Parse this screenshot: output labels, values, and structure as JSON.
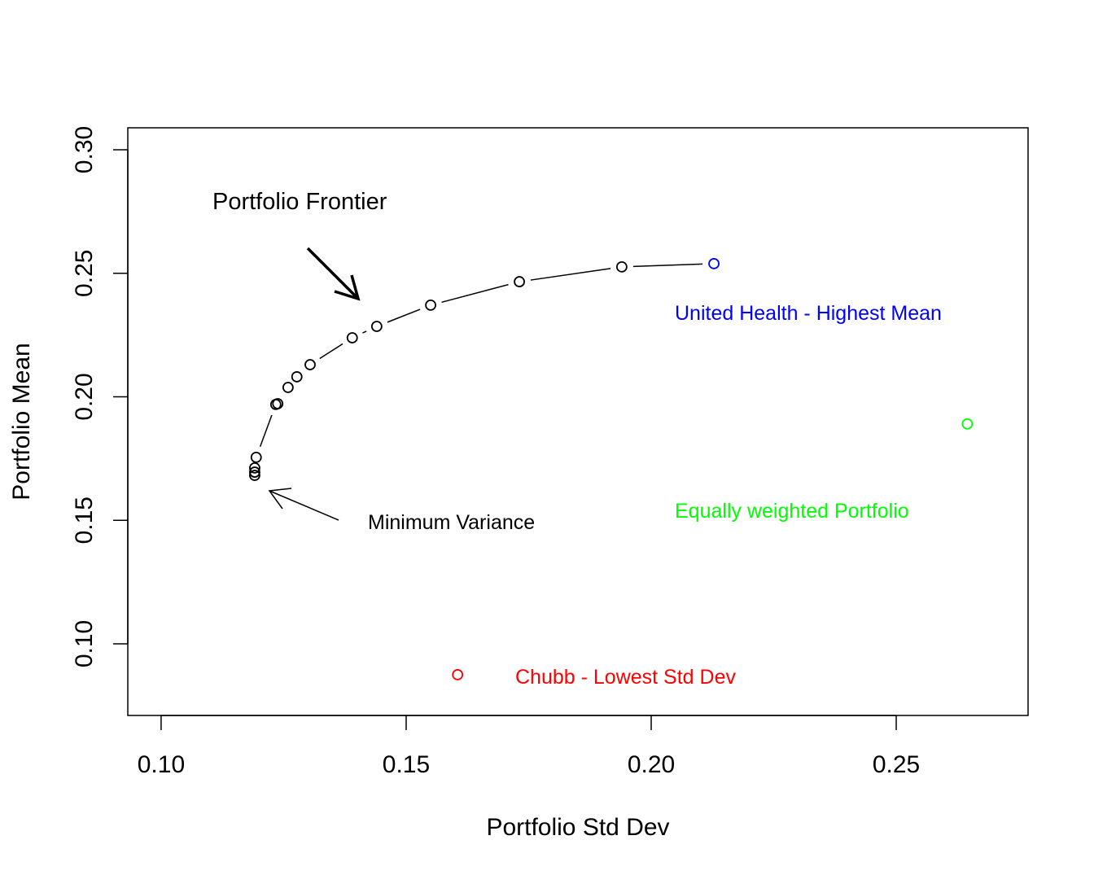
{
  "chart_data": {
    "type": "scatter",
    "title": "",
    "xlabel": "Portfolio Std Dev",
    "ylabel": "Portfolio Mean",
    "xlim": [
      0.0932,
      0.2769
    ],
    "ylim": [
      0.071,
      0.3089
    ],
    "xticks": [
      0.1,
      0.15,
      0.2,
      0.25
    ],
    "xtick_labels": [
      "0.10",
      "0.15",
      "0.20",
      "0.25"
    ],
    "yticks": [
      0.1,
      0.15,
      0.2,
      0.25,
      0.3
    ],
    "ytick_labels": [
      "0.10",
      "0.15",
      "0.20",
      "0.25",
      "0.30"
    ],
    "grid": false,
    "series": [
      {
        "color": "#000000",
        "style": "points-and-lines",
        "x": [
          0.1191,
          0.1191,
          0.1191,
          0.1194,
          0.1234,
          0.1238,
          0.1259,
          0.1277,
          0.1304,
          0.139,
          0.144,
          0.155,
          0.1731,
          0.194
        ],
        "y": [
          0.1682,
          0.1695,
          0.1712,
          0.1755,
          0.1969,
          0.1972,
          0.2038,
          0.2081,
          0.213,
          0.2239,
          0.2285,
          0.2371,
          0.2466,
          0.2526
        ]
      },
      {
        "color": "#0000FF",
        "x": [
          0.2128
        ],
        "y": [
          0.2539
        ]
      },
      {
        "color": "#00FF00",
        "x": [
          0.2645
        ],
        "y": [
          0.189
        ]
      },
      {
        "color": "#FF0000",
        "x": [
          0.1605
        ],
        "y": [
          0.0875
        ]
      }
    ],
    "annotations": [
      {
        "text": "Portfolio Frontier",
        "color": "#000000"
      },
      {
        "text": "Minimum Variance",
        "color": "#000000"
      },
      {
        "text": "United Health - Highest Mean",
        "color": "#0000FF"
      },
      {
        "text": "Equally weighted Portfolio",
        "color": "#00FF00"
      },
      {
        "text": "Chubb - Lowest Std Dev",
        "color": "#FF0000"
      }
    ]
  }
}
